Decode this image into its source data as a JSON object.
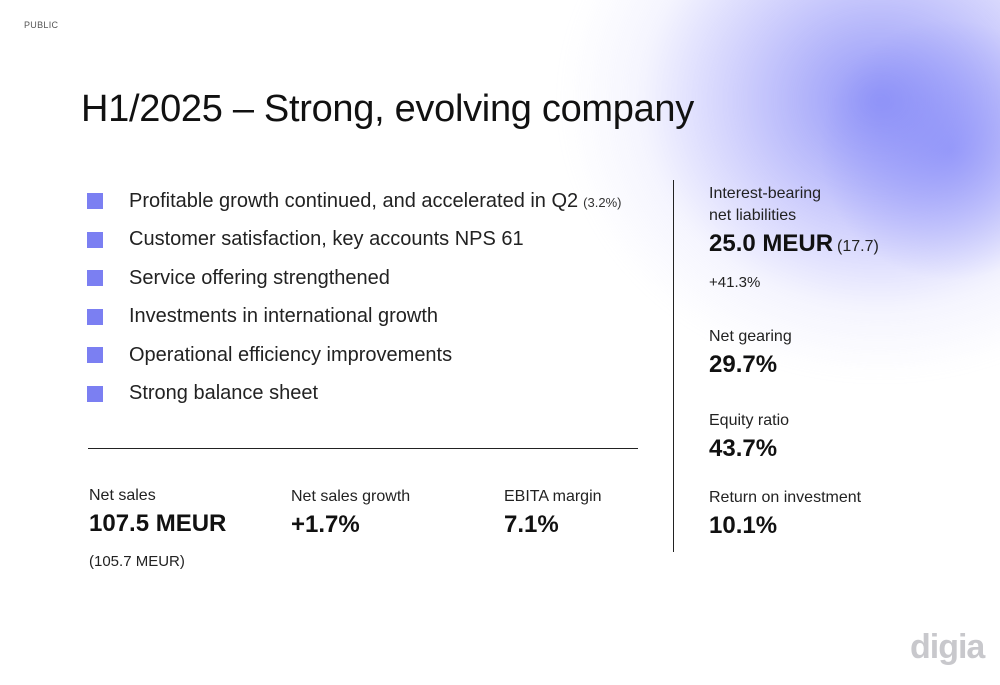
{
  "classification": "PUBLIC",
  "title": "H1/2025 – Strong, evolving company",
  "bullets": [
    {
      "text": "Profitable growth continued, and accelerated in Q2",
      "sub": "(3.2%)"
    },
    {
      "text": "Customer satisfaction, key accounts NPS 61",
      "sub": ""
    },
    {
      "text": "Service offering strengthened",
      "sub": ""
    },
    {
      "text": "Investments in international growth",
      "sub": ""
    },
    {
      "text": "Operational efficiency improvements",
      "sub": ""
    },
    {
      "text": "Strong balance sheet",
      "sub": ""
    }
  ],
  "bottom_kpis": {
    "net_sales": {
      "label": "Net sales",
      "value": "107.5 MEUR",
      "note": "(105.7 MEUR)"
    },
    "net_sales_growth": {
      "label": "Net sales growth",
      "value": "+1.7%"
    },
    "ebita_margin": {
      "label": "EBITA margin",
      "value": "7.1%"
    }
  },
  "side_kpis": {
    "interest_bearing": {
      "label_line1": "Interest-bearing",
      "label_line2": "net liabilities",
      "value": "25.0 MEUR",
      "value_sub": "(17.7)",
      "note": "+41.3%"
    },
    "net_gearing": {
      "label": "Net gearing",
      "value": "29.7%"
    },
    "equity_ratio": {
      "label": "Equity ratio",
      "value": "43.7%"
    },
    "roi": {
      "label": "Return on investment",
      "value": "10.1%"
    }
  },
  "logo_text": "digia",
  "colors": {
    "accent": "#7b7ff2",
    "glow": "#8a8df5",
    "logo": "#c8c8cc"
  }
}
